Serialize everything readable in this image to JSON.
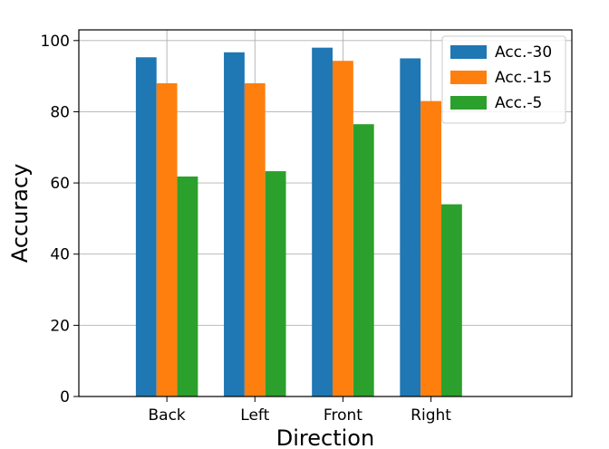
{
  "chart_data": {
    "type": "bar",
    "title": "",
    "xlabel": "Direction",
    "ylabel": "Accuracy",
    "categories": [
      "Back",
      "Left",
      "Front",
      "Right"
    ],
    "series": [
      {
        "name": "Acc.-30",
        "color": "#1f77b4",
        "values": [
          95.3,
          96.7,
          98.0,
          95.0
        ]
      },
      {
        "name": "Acc.-15",
        "color": "#ff7f0e",
        "values": [
          88.0,
          88.0,
          94.3,
          83.0
        ]
      },
      {
        "name": "Acc.-5",
        "color": "#2ca02c",
        "values": [
          61.8,
          63.3,
          76.5,
          54.0
        ]
      }
    ],
    "ylim": [
      0,
      103
    ],
    "xlim": [
      -1.0,
      4.6
    ],
    "yticks": [
      0,
      20,
      40,
      60,
      80,
      100
    ],
    "grid": true,
    "legend_position": "top-right"
  }
}
